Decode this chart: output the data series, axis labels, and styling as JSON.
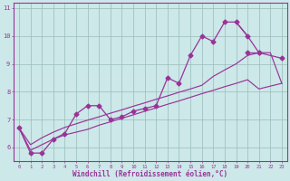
{
  "xlabel": "Windchill (Refroidissement éolien,°C)",
  "x": [
    0,
    1,
    2,
    3,
    4,
    5,
    6,
    7,
    8,
    9,
    10,
    11,
    12,
    13,
    14,
    15,
    16,
    17,
    18,
    19,
    20,
    21,
    22,
    23
  ],
  "line_jagged": [
    6.7,
    5.8,
    5.8,
    6.3,
    6.5,
    7.2,
    7.5,
    7.5,
    7.0,
    7.1,
    7.3,
    7.4,
    7.5,
    8.5,
    8.3,
    9.3,
    10.0,
    9.8,
    10.5,
    10.5,
    10.0,
    9.4,
    null,
    null
  ],
  "line_top_segment": [
    null,
    null,
    null,
    null,
    null,
    null,
    null,
    null,
    null,
    null,
    null,
    null,
    null,
    null,
    null,
    null,
    null,
    null,
    null,
    null,
    9.4,
    9.4,
    null,
    9.2
  ],
  "line_lower": [
    6.7,
    5.9,
    6.1,
    6.3,
    6.45,
    6.55,
    6.65,
    6.8,
    6.92,
    7.05,
    7.17,
    7.3,
    7.42,
    7.55,
    7.67,
    7.8,
    7.93,
    8.05,
    8.18,
    8.3,
    8.43,
    8.1,
    8.2,
    8.3
  ],
  "line_upper": [
    6.7,
    6.1,
    6.35,
    6.55,
    6.72,
    6.85,
    6.98,
    7.1,
    7.23,
    7.35,
    7.48,
    7.6,
    7.73,
    7.85,
    7.98,
    8.1,
    8.23,
    8.55,
    8.78,
    9.0,
    9.3,
    9.4,
    9.4,
    8.3
  ],
  "line_color": "#993399",
  "bg_color": "#cce8e8",
  "grid_color": "#99bbbb",
  "ylim": [
    5.5,
    11.2
  ],
  "xlim": [
    -0.5,
    23.5
  ],
  "yticks": [
    6,
    7,
    8,
    9,
    10,
    11
  ],
  "ytick_labels": [
    "6",
    "7",
    "8",
    "9",
    "10",
    "11"
  ]
}
